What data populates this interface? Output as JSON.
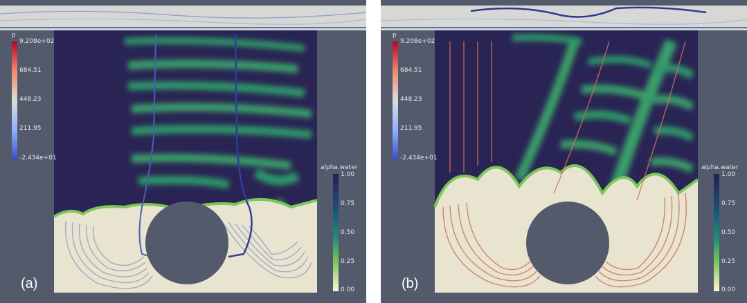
{
  "panels": [
    {
      "label": "(a)",
      "pressure_scale": {
        "title": "p",
        "ticks": [
          "9.208e+02",
          "684.51",
          "448.23",
          "211.95",
          "-2.434e+01"
        ]
      },
      "alpha_scale": {
        "title": "alpha.water",
        "ticks": [
          "1.00",
          "0.75",
          "0.50",
          "0.25",
          "0.00"
        ]
      }
    },
    {
      "label": "(b)",
      "pressure_scale": {
        "title": "p",
        "ticks": [
          "9.208e+02",
          "684.51",
          "448.23",
          "211.95",
          "-2.434e+01"
        ]
      },
      "alpha_scale": {
        "title": "alpha.water",
        "ticks": [
          "1.00",
          "0.75",
          "0.50",
          "0.25",
          "0.00"
        ]
      }
    }
  ],
  "colors": {
    "background": "#525a6c",
    "water_dark": "#2a2454",
    "air_light": "#e8e4cf",
    "interface_green": "#2f9e6a",
    "streamline_grey": "#9aa3c4",
    "streamline_red": "#d0705a"
  }
}
